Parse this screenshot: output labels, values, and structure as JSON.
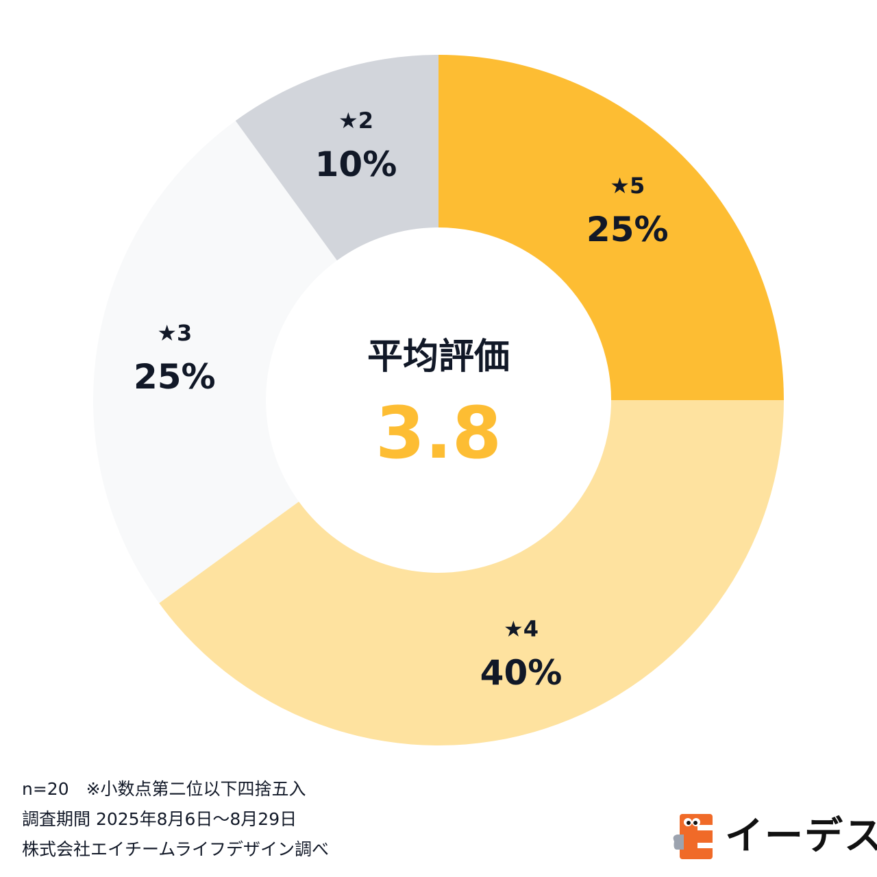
{
  "chart_data": {
    "type": "pie",
    "variant": "donut",
    "slices": [
      {
        "label": "★5",
        "value": 25,
        "value_label": "25%",
        "color": "#FDBD33"
      },
      {
        "label": "★4",
        "value": 40,
        "value_label": "40%",
        "color": "#FEE29F"
      },
      {
        "label": "★3",
        "value": 25,
        "value_label": "25%",
        "color": "#F8F9FA"
      },
      {
        "label": "★2",
        "value": 10,
        "value_label": "10%",
        "color": "#D2D5DB"
      }
    ],
    "order": "clockwise from 12 o'clock",
    "center": {
      "title": "平均評価",
      "value": "3.8",
      "value_color": "#FDBD33"
    }
  },
  "footnotes": {
    "line1": "n=20　※小数点第二位以下四捨五入",
    "line2": "調査期間 2025年8月6日～8月29日",
    "line3": "株式会社エイチームライフデザイン調べ"
  },
  "logo": {
    "text": "イーデス",
    "icon": "idesu-mascot-icon",
    "icon_color": "#F06A28"
  }
}
